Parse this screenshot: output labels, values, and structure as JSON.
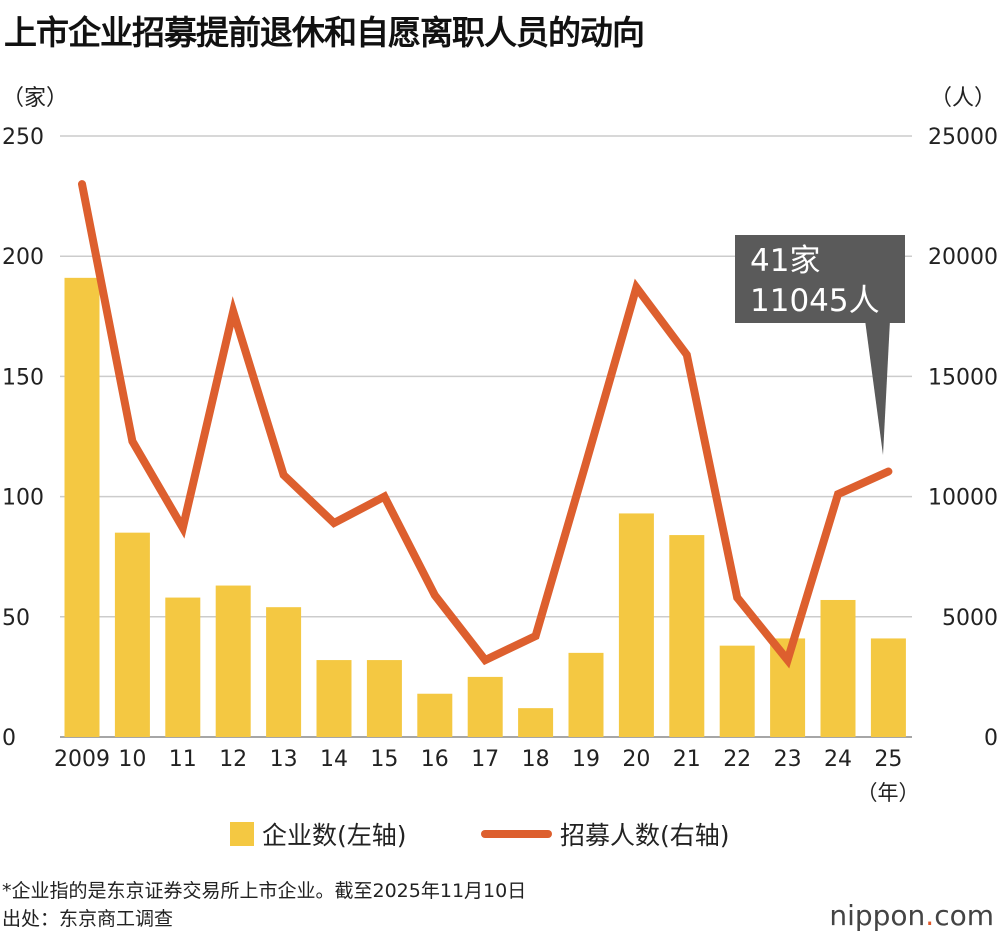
{
  "title": "上市企业招募提前退休和自愿离职人员的动向",
  "left_unit": "（家）",
  "right_unit": "（人）",
  "year_unit": "（年）",
  "callout": {
    "line1": "41家",
    "line2": "11045人"
  },
  "footnote": "*企业指的是东京证券交易所上市企业。截至2025年11月10日",
  "source": "出处：东京商工调查",
  "logo": {
    "name": "nippon",
    "dot": ".",
    "suffix": "com"
  },
  "colors": {
    "bar": "#f4c842",
    "line": "#dd5f2e",
    "callout": "#5a5a5a",
    "grid": "#cccccc"
  },
  "chart_data": {
    "type": "bar+line",
    "title": "上市企业招募提前退休和自愿离职人员的动向",
    "categories": [
      "2009",
      "10",
      "11",
      "12",
      "13",
      "14",
      "15",
      "16",
      "17",
      "18",
      "19",
      "20",
      "21",
      "22",
      "23",
      "24",
      "25"
    ],
    "series": [
      {
        "name": "企业数(左轴)",
        "type": "bar",
        "axis": "left",
        "values": [
          191,
          85,
          58,
          63,
          54,
          32,
          32,
          18,
          25,
          12,
          35,
          93,
          84,
          38,
          41,
          57,
          41
        ]
      },
      {
        "name": "招募人数(右轴)",
        "type": "line",
        "axis": "right",
        "values": [
          23000,
          12300,
          8700,
          17700,
          10900,
          8900,
          10000,
          5900,
          3200,
          4200,
          11400,
          18700,
          15900,
          5800,
          3200,
          10100,
          11045
        ]
      }
    ],
    "left_axis": {
      "label": "（家）",
      "ylim": [
        0,
        250
      ],
      "ticks": [
        "0",
        "50",
        "100",
        "150",
        "200",
        "250"
      ]
    },
    "right_axis": {
      "label": "（人）",
      "ylim": [
        0,
        25000
      ],
      "ticks": [
        "0",
        "5000",
        "10000",
        "15000",
        "20000",
        "25000"
      ]
    },
    "xlabel": "（年）",
    "grid": true,
    "legend": "bottom-center",
    "annotation": "41家 11045人"
  }
}
